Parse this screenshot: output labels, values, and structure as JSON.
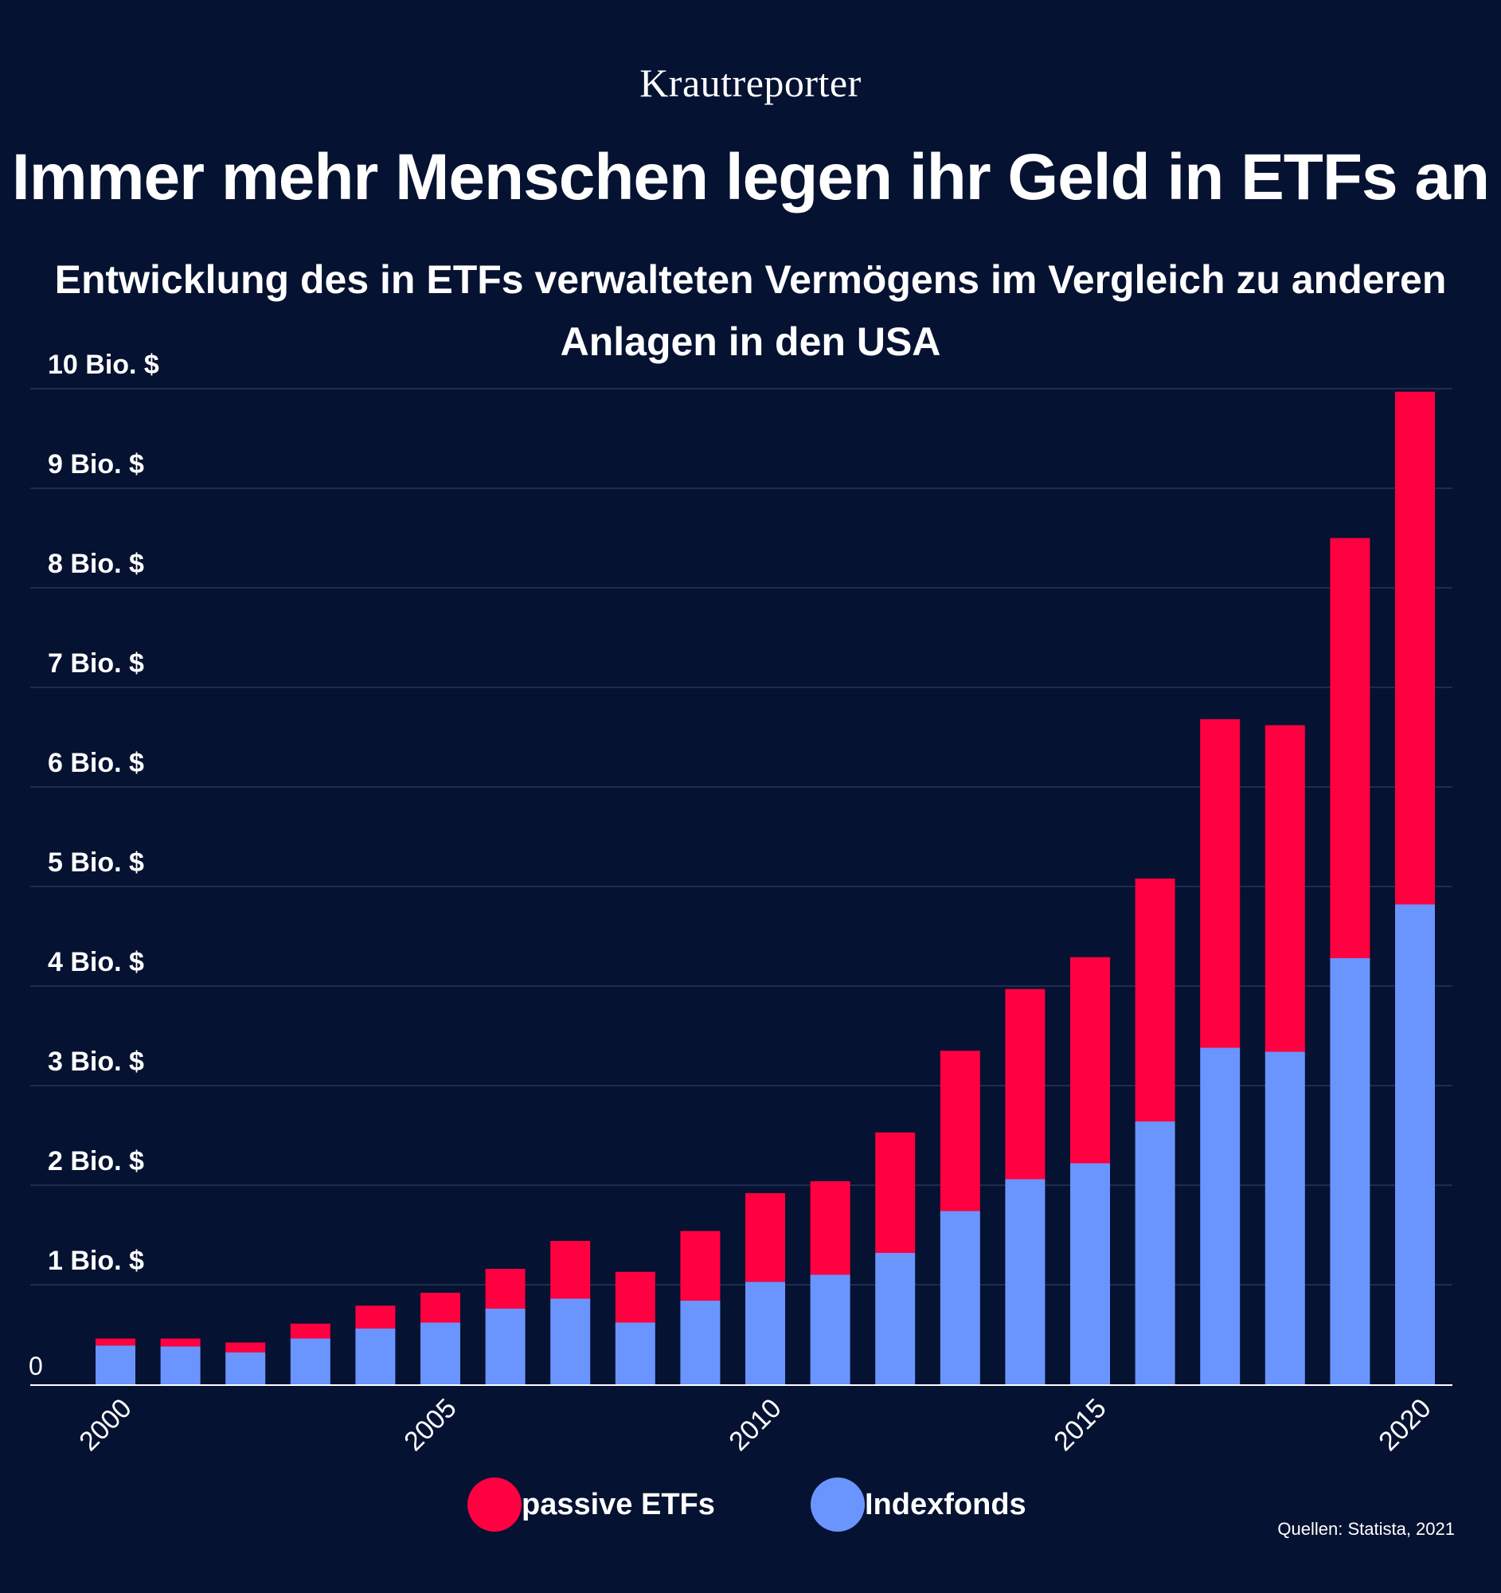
{
  "brand": "Krautreporter",
  "source": "Quellen: Statista, 2021",
  "colors": {
    "background": "#061231",
    "etf": "#ff0040",
    "index": "#6a95ff",
    "grid": "#26345a",
    "axis": "#ffffff"
  },
  "chart_data": {
    "type": "bar",
    "stacked": true,
    "title": "Immer mehr Menschen legen ihr Geld in ETFs an",
    "subtitle": "Entwicklung des in ETFs verwalteten Vermögens im Vergleich zu anderen Anlagen in den USA",
    "categories": [
      2000,
      2001,
      2002,
      2003,
      2004,
      2005,
      2006,
      2007,
      2008,
      2009,
      2010,
      2011,
      2012,
      2013,
      2014,
      2015,
      2016,
      2017,
      2018,
      2019,
      2020
    ],
    "x_tick_labels": [
      "2000",
      "2005",
      "2010",
      "2015",
      "2020"
    ],
    "x_tick_values": [
      2000,
      2005,
      2010,
      2015,
      2020
    ],
    "y_tick_labels": [
      "0",
      "1 Bio. $",
      "2 Bio. $",
      "3 Bio. $",
      "4 Bio. $",
      "5 Bio. $",
      "6 Bio. $",
      "7 Bio. $",
      "8 Bio. $",
      "9 Bio. $",
      "10 Bio. $"
    ],
    "y_tick_values": [
      0,
      1,
      2,
      3,
      4,
      5,
      6,
      7,
      8,
      9,
      10
    ],
    "ylim": [
      0,
      10
    ],
    "grid": true,
    "legend_position": "bottom-center",
    "series": [
      {
        "name": "Indexfonds",
        "color": "#6a95ff",
        "values": [
          0.39,
          0.38,
          0.32,
          0.46,
          0.56,
          0.62,
          0.76,
          0.86,
          0.62,
          0.84,
          1.03,
          1.1,
          1.32,
          1.74,
          2.06,
          2.22,
          2.64,
          3.38,
          3.34,
          4.28,
          4.82
        ]
      },
      {
        "name": "passive ETFs",
        "color": "#ff0040",
        "values": [
          0.07,
          0.08,
          0.1,
          0.15,
          0.23,
          0.3,
          0.4,
          0.58,
          0.51,
          0.7,
          0.89,
          0.94,
          1.21,
          1.61,
          1.91,
          2.07,
          2.44,
          3.3,
          3.28,
          4.22,
          5.15
        ]
      }
    ]
  },
  "legend": [
    {
      "name": "passive ETFs",
      "color": "#ff0040"
    },
    {
      "name": "Indexfonds",
      "color": "#6a95ff"
    }
  ]
}
